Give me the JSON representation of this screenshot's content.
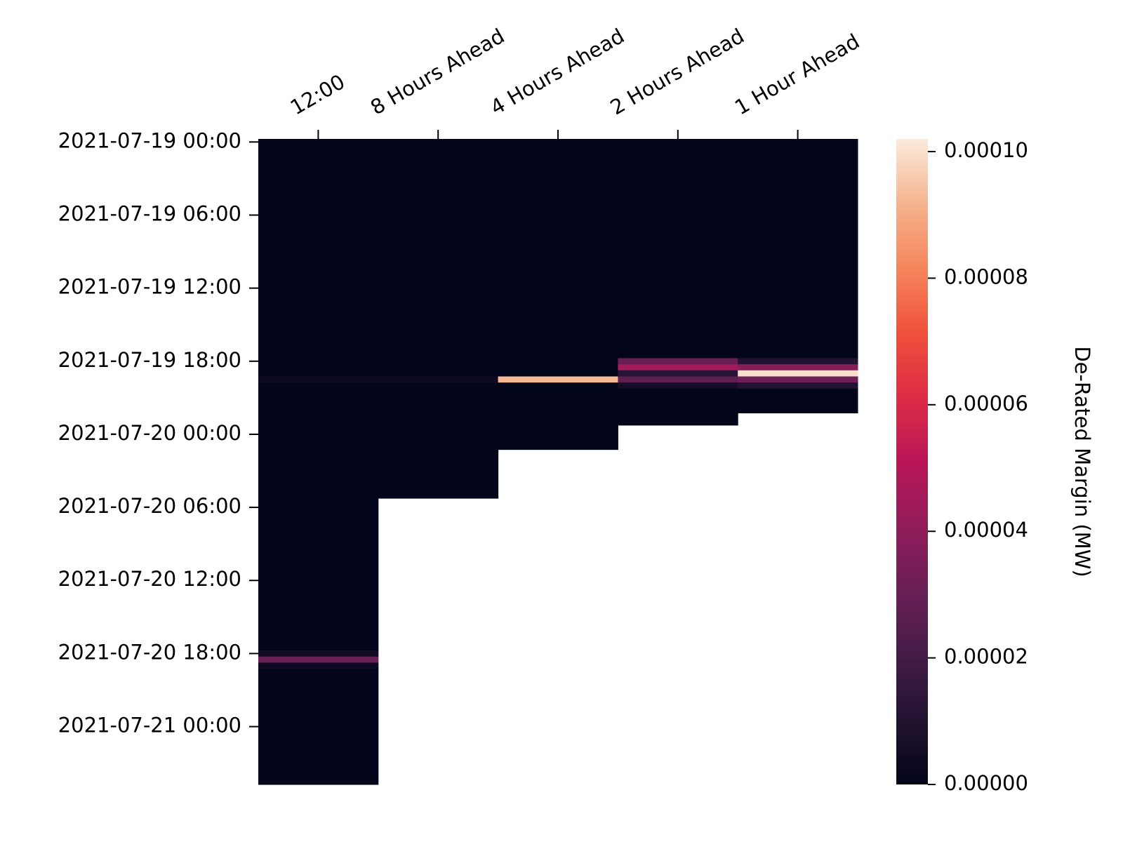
{
  "chart_data": {
    "type": "heatmap",
    "colorbar_label": "De-Rated Margin (MW)",
    "ylim": [
      -0.25,
      52.75
    ],
    "yticks": [
      {
        "value": 0,
        "label": "2021-07-19 00:00"
      },
      {
        "value": 6,
        "label": "2021-07-19 06:00"
      },
      {
        "value": 12,
        "label": "2021-07-19 12:00"
      },
      {
        "value": 18,
        "label": "2021-07-19 18:00"
      },
      {
        "value": 24,
        "label": "2021-07-20 00:00"
      },
      {
        "value": 30,
        "label": "2021-07-20 06:00"
      },
      {
        "value": 36,
        "label": "2021-07-20 12:00"
      },
      {
        "value": 42,
        "label": "2021-07-20 18:00"
      },
      {
        "value": 48,
        "label": "2021-07-21 00:00"
      }
    ],
    "clim": [
      0,
      0.000102
    ],
    "cticks": [
      {
        "value": 0,
        "label": "0.00000"
      },
      {
        "value": 2e-05,
        "label": "0.00002"
      },
      {
        "value": 4e-05,
        "label": "0.00004"
      },
      {
        "value": 6e-05,
        "label": "0.00006"
      },
      {
        "value": 8e-05,
        "label": "0.00008"
      },
      {
        "value": 0.0001,
        "label": "0.00010"
      }
    ],
    "colormap": [
      "#03051a",
      "#221331",
      "#451c47",
      "#691f55",
      "#921c5b",
      "#b91657",
      "#dd2c45",
      "#f0513b",
      "#f6855c",
      "#f6b48e",
      "#faebdd"
    ],
    "series": [
      {
        "name": "12:00",
        "y0": [
          -0.25,
          19.25,
          19.75,
          41.75,
          42.25,
          42.75,
          43.25
        ],
        "y1": [
          19.25,
          19.75,
          41.75,
          42.25,
          42.75,
          43.25,
          52.75
        ],
        "values": [
          0,
          3e-06,
          0,
          5e-06,
          3e-05,
          4e-06,
          0
        ]
      },
      {
        "name": "8 Hours Ahead",
        "y0": [
          -0.25,
          19.25,
          19.75
        ],
        "y1": [
          19.25,
          19.75,
          29.25
        ],
        "values": [
          0,
          3e-06,
          0
        ]
      },
      {
        "name": "4 Hours Ahead",
        "y0": [
          -0.25,
          19.25,
          19.75
        ],
        "y1": [
          19.25,
          19.75,
          25.25
        ],
        "values": [
          0,
          9.3e-05,
          0
        ]
      },
      {
        "name": "2 Hours Ahead",
        "y0": [
          -0.25,
          17.75,
          18.25,
          18.75,
          19.25,
          19.75,
          20.25
        ],
        "y1": [
          17.75,
          18.25,
          18.75,
          19.25,
          19.75,
          20.25,
          23.25
        ],
        "values": [
          0,
          3e-05,
          4.5e-05,
          1.2e-05,
          2.8e-05,
          6e-06,
          0
        ]
      },
      {
        "name": "1 Hour Ahead",
        "y0": [
          -0.25,
          17.75,
          18.25,
          18.75,
          19.25,
          19.75,
          20.25
        ],
        "y1": [
          17.75,
          18.25,
          18.75,
          19.25,
          19.75,
          20.25,
          22.25
        ],
        "values": [
          0,
          1e-05,
          3.8e-05,
          0.0001,
          3.2e-05,
          1e-05,
          0
        ]
      }
    ]
  }
}
